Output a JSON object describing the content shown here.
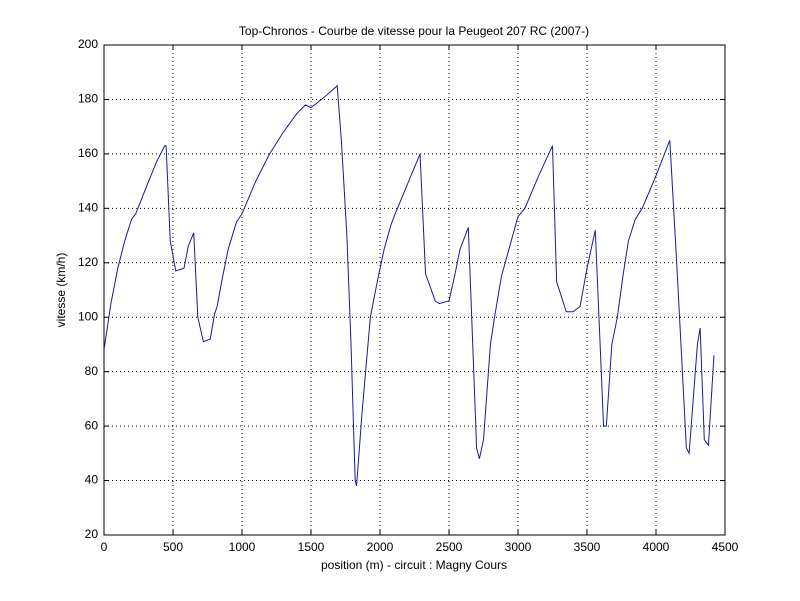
{
  "chart_data": {
    "type": "line",
    "title": "Top-Chronos - Courbe de vitesse pour la Peugeot 207 RC (2007-)",
    "x_label": "position (m) - circuit : Magny Cours",
    "y_label": "vitesse (km/h)",
    "xlim": [
      0,
      4500
    ],
    "xticks": [
      0,
      500,
      1000,
      1500,
      2000,
      2500,
      3000,
      3500,
      4000,
      4500
    ],
    "ylim": [
      20,
      200
    ],
    "yticks": [
      20,
      40,
      60,
      80,
      100,
      120,
      140,
      160,
      180,
      200
    ],
    "grid": true,
    "series": [
      {
        "color": "#1a1a9c",
        "x": [
          0,
          50,
          100,
          150,
          200,
          230,
          300,
          380,
          440,
          450,
          480,
          520,
          580,
          610,
          650,
          680,
          720,
          770,
          800,
          820,
          860,
          900,
          960,
          1000,
          1100,
          1200,
          1300,
          1400,
          1460,
          1500,
          1600,
          1690,
          1720,
          1760,
          1790,
          1820,
          1830,
          1870,
          1930,
          1980,
          2030,
          2080,
          2110,
          2200,
          2290,
          2330,
          2400,
          2430,
          2500,
          2540,
          2580,
          2640,
          2700,
          2720,
          2750,
          2800,
          2830,
          2880,
          2940,
          3000,
          3050,
          3150,
          3250,
          3280,
          3350,
          3400,
          3450,
          3500,
          3560,
          3620,
          3640,
          3680,
          3720,
          3760,
          3800,
          3850,
          3900,
          4000,
          4100,
          4150,
          4220,
          4240,
          4270,
          4300,
          4320,
          4350,
          4380,
          4420
        ],
        "values": [
          88,
          105,
          118,
          128,
          136,
          138,
          147,
          157,
          163,
          163,
          128,
          117,
          118,
          126,
          131,
          100,
          91,
          92,
          101,
          104,
          115,
          125,
          135,
          138,
          150,
          160,
          168,
          175,
          178,
          177,
          181,
          185,
          165,
          130,
          90,
          40,
          38,
          65,
          100,
          113,
          125,
          134,
          138,
          149,
          160,
          116,
          106,
          105,
          106,
          115,
          125,
          133,
          52,
          48,
          55,
          90,
          100,
          115,
          126,
          137,
          140,
          152,
          163,
          113,
          102,
          102,
          104,
          118,
          132,
          60,
          60,
          90,
          100,
          115,
          128,
          136,
          140,
          152,
          165,
          120,
          52,
          50,
          70,
          90,
          96,
          55,
          53,
          86
        ]
      }
    ]
  }
}
